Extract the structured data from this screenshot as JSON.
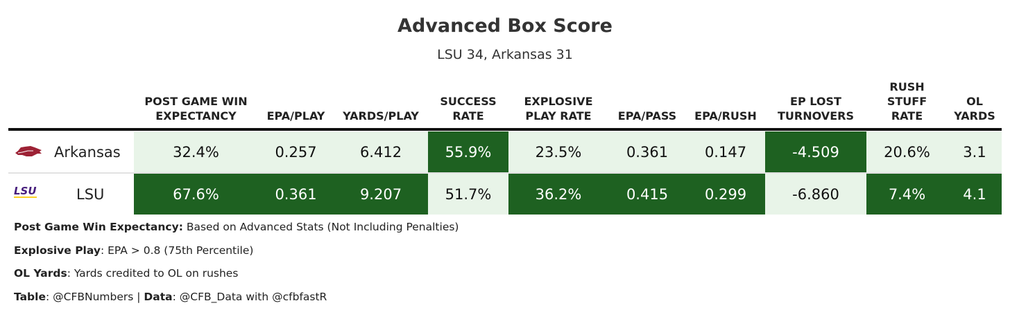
{
  "title": "Advanced Box Score",
  "subtitle": "LSU 34, Arkansas 31",
  "colors": {
    "high": "#1e6121",
    "low": "#e8f4e8",
    "text_dark": "#111111",
    "text_light": "#ffffff"
  },
  "chart_data": {
    "type": "table",
    "columns": [
      [
        "POST GAME WIN",
        "EXPECTANCY"
      ],
      [
        "EPA/PLAY"
      ],
      [
        "YARDS/PLAY"
      ],
      [
        "SUCCESS",
        "RATE"
      ],
      [
        "EXPLOSIVE",
        "PLAY RATE"
      ],
      [
        "EPA/PASS"
      ],
      [
        "EPA/RUSH"
      ],
      [
        "EP LOST",
        "TURNOVERS"
      ],
      [
        "RUSH",
        "STUFF",
        "RATE"
      ],
      [
        "OL",
        "YARDS"
      ]
    ],
    "rows": [
      {
        "team": "Arkansas",
        "logo": "arkansas-razorback-logo",
        "values": [
          "32.4%",
          "0.257",
          "6.412",
          "55.9%",
          "23.5%",
          "0.361",
          "0.147",
          "-4.509",
          "20.6%",
          "3.1"
        ],
        "highlight": [
          false,
          false,
          false,
          true,
          false,
          false,
          false,
          true,
          false,
          false
        ]
      },
      {
        "team": "LSU",
        "logo": "LSU",
        "values": [
          "67.6%",
          "0.361",
          "9.207",
          "51.7%",
          "36.2%",
          "0.415",
          "0.299",
          "-6.860",
          "7.4%",
          "4.1"
        ],
        "highlight": [
          true,
          true,
          true,
          false,
          true,
          true,
          true,
          false,
          true,
          true
        ]
      }
    ]
  },
  "notes": [
    {
      "label": "Post Game Win Expectancy:",
      "text": " Based on Advanced Stats (Not Including Penalties)"
    },
    {
      "label": "Explosive Play",
      "text": ": EPA > 0.8 (75th Percentile)"
    },
    {
      "label": "OL Yards",
      "text": ": Yards credited to OL on rushes"
    },
    {
      "label": "Table",
      "text": ": @CFBNumbers | ",
      "label2": "Data",
      "text2": ": @CFB_Data with @cfbfastR"
    }
  ]
}
